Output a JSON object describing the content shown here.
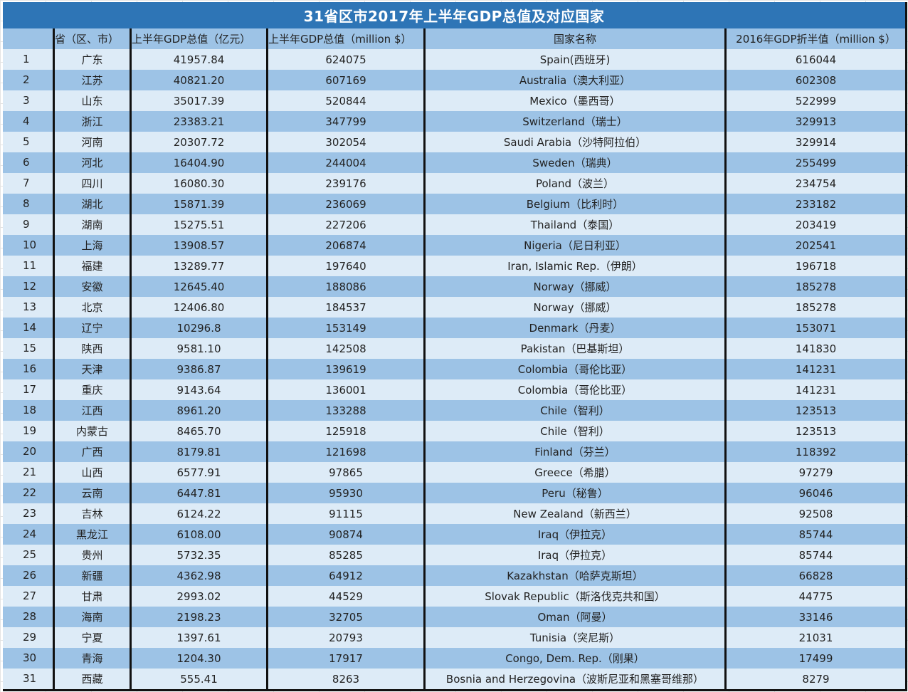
{
  "title": "31省区市2017年上半年GDP总值及对应国家",
  "headers": {
    "index": "",
    "province": "省（区、市）",
    "gdp_cny": "上半年GDP总值（亿元）",
    "gdp_usd": "上半年GDP总值（million $）",
    "country": "国家名称",
    "country_gdp": "2016年GDP折半值（million $）"
  },
  "colors": {
    "title_bg": "#2e75b6",
    "header_bg": "#9dc3e6",
    "row_light": "#ddebf7",
    "row_dark": "#9dc3e6"
  },
  "rows": [
    {
      "index": "1",
      "province": "广东",
      "gdp_cny": "41957.84",
      "gdp_usd": "624075",
      "country": "Spain(西班牙)",
      "country_gdp": "616044"
    },
    {
      "index": "2",
      "province": "江苏",
      "gdp_cny": "40821.20",
      "gdp_usd": "607169",
      "country": "Australia（澳大利亚）",
      "country_gdp": "602308"
    },
    {
      "index": "3",
      "province": "山东",
      "gdp_cny": "35017.39",
      "gdp_usd": "520844",
      "country": "Mexico（墨西哥）",
      "country_gdp": "522999"
    },
    {
      "index": "4",
      "province": "浙江",
      "gdp_cny": "23383.21",
      "gdp_usd": "347799",
      "country": "Switzerland（瑞士）",
      "country_gdp": "329913"
    },
    {
      "index": "5",
      "province": "河南",
      "gdp_cny": "20307.72",
      "gdp_usd": "302054",
      "country": "Saudi Arabia（沙特阿拉伯）",
      "country_gdp": "329914"
    },
    {
      "index": "6",
      "province": "河北",
      "gdp_cny": "16404.90",
      "gdp_usd": "244004",
      "country": "Sweden（瑞典）",
      "country_gdp": "255499"
    },
    {
      "index": "7",
      "province": "四川",
      "gdp_cny": "16080.30",
      "gdp_usd": "239176",
      "country": "Poland（波兰）",
      "country_gdp": "234754"
    },
    {
      "index": "8",
      "province": "湖北",
      "gdp_cny": "15871.39",
      "gdp_usd": "236069",
      "country": "Belgium（比利时）",
      "country_gdp": "233182"
    },
    {
      "index": "9",
      "province": "湖南",
      "gdp_cny": "15275.51",
      "gdp_usd": "227206",
      "country": "Thailand（泰国）",
      "country_gdp": "203419"
    },
    {
      "index": "10",
      "province": "上海",
      "gdp_cny": "13908.57",
      "gdp_usd": "206874",
      "country": "Nigeria（尼日利亚）",
      "country_gdp": "202541"
    },
    {
      "index": "11",
      "province": "福建",
      "gdp_cny": "13289.77",
      "gdp_usd": "197640",
      "country": "Iran, Islamic Rep.（伊朗）",
      "country_gdp": "196718"
    },
    {
      "index": "12",
      "province": "安徽",
      "gdp_cny": "12645.40",
      "gdp_usd": "188086",
      "country": "Norway（挪威）",
      "country_gdp": "185278"
    },
    {
      "index": "13",
      "province": "北京",
      "gdp_cny": "12406.80",
      "gdp_usd": "184537",
      "country": "Norway（挪威）",
      "country_gdp": "185278"
    },
    {
      "index": "14",
      "province": "辽宁",
      "gdp_cny": "10296.8",
      "gdp_usd": "153149",
      "country": "Denmark（丹麦）",
      "country_gdp": "153071"
    },
    {
      "index": "15",
      "province": "陕西",
      "gdp_cny": "9581.10",
      "gdp_usd": "142508",
      "country": "Pakistan（巴基斯坦）",
      "country_gdp": "141830"
    },
    {
      "index": "16",
      "province": "天津",
      "gdp_cny": "9386.87",
      "gdp_usd": "139619",
      "country": "Colombia（哥伦比亚）",
      "country_gdp": "141231"
    },
    {
      "index": "17",
      "province": "重庆",
      "gdp_cny": "9143.64",
      "gdp_usd": "136001",
      "country": "Colombia（哥伦比亚）",
      "country_gdp": "141231"
    },
    {
      "index": "18",
      "province": "江西",
      "gdp_cny": "8961.20",
      "gdp_usd": "133288",
      "country": "Chile（智利）",
      "country_gdp": "123513"
    },
    {
      "index": "19",
      "province": "内蒙古",
      "gdp_cny": "8465.70",
      "gdp_usd": "125918",
      "country": "Chile（智利）",
      "country_gdp": "123513"
    },
    {
      "index": "20",
      "province": "广西",
      "gdp_cny": "8179.81",
      "gdp_usd": "121698",
      "country": "Finland（芬兰）",
      "country_gdp": "118392"
    },
    {
      "index": "21",
      "province": "山西",
      "gdp_cny": "6577.91",
      "gdp_usd": "97865",
      "country": "Greece（希腊）",
      "country_gdp": "97279"
    },
    {
      "index": "22",
      "province": "云南",
      "gdp_cny": "6447.81",
      "gdp_usd": "95930",
      "country": "Peru（秘鲁）",
      "country_gdp": "96046"
    },
    {
      "index": "23",
      "province": "吉林",
      "gdp_cny": "6124.22",
      "gdp_usd": "91115",
      "country": "New Zealand（新西兰）",
      "country_gdp": "92508"
    },
    {
      "index": "24",
      "province": "黑龙江",
      "gdp_cny": "6108.00",
      "gdp_usd": "90874",
      "country": "Iraq（伊拉克）",
      "country_gdp": "85744"
    },
    {
      "index": "25",
      "province": "贵州",
      "gdp_cny": "5732.35",
      "gdp_usd": "85285",
      "country": "Iraq（伊拉克）",
      "country_gdp": "85744"
    },
    {
      "index": "26",
      "province": "新疆",
      "gdp_cny": "4362.98",
      "gdp_usd": "64912",
      "country": "Kazakhstan（哈萨克斯坦）",
      "country_gdp": "66828"
    },
    {
      "index": "27",
      "province": "甘肃",
      "gdp_cny": "2993.02",
      "gdp_usd": "44529",
      "country": "Slovak Republic（斯洛伐克共和国）",
      "country_gdp": "44775"
    },
    {
      "index": "28",
      "province": "海南",
      "gdp_cny": "2198.23",
      "gdp_usd": "32705",
      "country": "Oman（阿曼）",
      "country_gdp": "33146"
    },
    {
      "index": "29",
      "province": "宁夏",
      "gdp_cny": "1397.61",
      "gdp_usd": "20793",
      "country": "Tunisia（突尼斯）",
      "country_gdp": "21031"
    },
    {
      "index": "30",
      "province": "青海",
      "gdp_cny": "1204.30",
      "gdp_usd": "17917",
      "country": "Congo, Dem. Rep.（刚果）",
      "country_gdp": "17499"
    },
    {
      "index": "31",
      "province": "西藏",
      "gdp_cny": "555.41",
      "gdp_usd": "8263",
      "country": "Bosnia and Herzegovina（波斯尼亚和黑塞哥维那）",
      "country_gdp": "8279"
    }
  ]
}
